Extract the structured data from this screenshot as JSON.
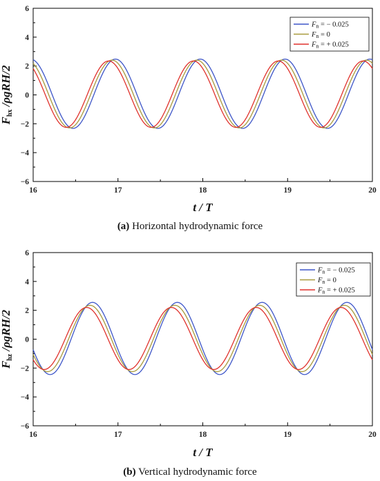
{
  "chart_data": [
    {
      "type": "line",
      "id": "a",
      "caption_letter": "(a)",
      "caption": "Horizontal hydrodynamic force",
      "xlabel_main": "t / T",
      "ylabel_main": "F",
      "ylabel_sub": "hx",
      "ylabel_rest": " /ρgRH/2",
      "xlim": [
        16,
        20
      ],
      "ylim": [
        -6,
        6
      ],
      "xticks": [
        16,
        17,
        18,
        19,
        20
      ],
      "yticks": [
        -6,
        -4,
        -2,
        0,
        2,
        4,
        6
      ],
      "legend_position": "top-right",
      "series": [
        {
          "name": "= − 0.025",
          "color": "#3d55c8",
          "amplitude": 2.4,
          "offset": 0.08,
          "peak_x": [
            16.97,
            17.97,
            18.97,
            19.97
          ]
        },
        {
          "name": "=    0",
          "color": "#a89a3c",
          "amplitude": 2.35,
          "offset": 0.06,
          "peak_x": [
            16.93,
            17.93,
            18.93,
            19.93
          ]
        },
        {
          "name": "= + 0.025",
          "color": "#e0312c",
          "amplitude": 2.3,
          "offset": 0.05,
          "peak_x": [
            16.89,
            17.89,
            18.89,
            19.89
          ]
        }
      ]
    },
    {
      "type": "line",
      "id": "b",
      "caption_letter": "(b)",
      "caption": "Vertical hydrodynamic force",
      "xlabel_main": "t / T",
      "ylabel_main": "F",
      "ylabel_sub": "hz",
      "ylabel_rest": " /ρgRH/2",
      "xlim": [
        16,
        20
      ],
      "ylim": [
        -6,
        6
      ],
      "xticks": [
        16,
        17,
        18,
        19,
        20
      ],
      "yticks": [
        -6,
        -4,
        -2,
        0,
        2,
        4,
        6
      ],
      "legend_position": "top-right",
      "series": [
        {
          "name": "= − 0.025",
          "color": "#3d55c8",
          "amplitude": 2.5,
          "offset": 0.05,
          "peak_x": [
            16.7,
            17.7,
            18.7,
            19.7
          ]
        },
        {
          "name": "=    0",
          "color": "#a89a3c",
          "amplitude": 2.3,
          "offset": 0.05,
          "peak_x": [
            16.67,
            17.67,
            18.67,
            19.67
          ]
        },
        {
          "name": "= + 0.025",
          "color": "#e0312c",
          "amplitude": 2.15,
          "offset": 0.05,
          "peak_x": [
            16.63,
            17.63,
            18.63,
            19.63
          ]
        }
      ]
    }
  ],
  "legend_symbol": "F",
  "legend_symbol_sub": "n"
}
